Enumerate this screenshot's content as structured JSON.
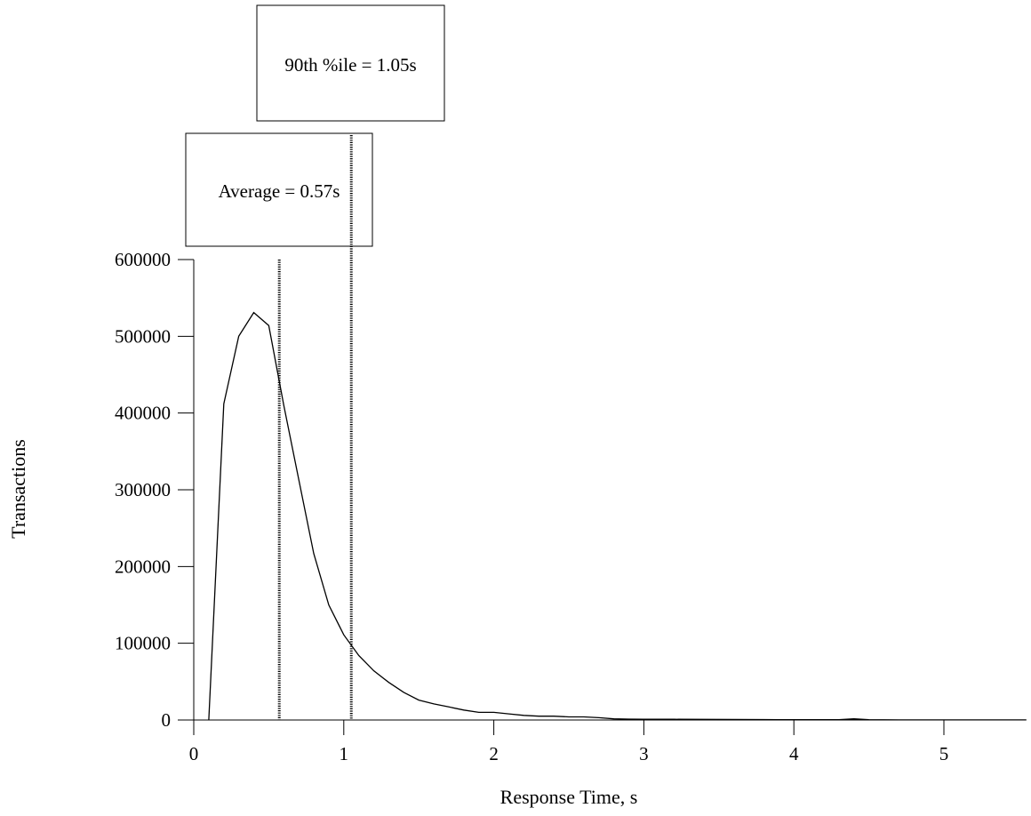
{
  "chart_data": {
    "type": "line",
    "title": "",
    "xlabel": "Response Time, s",
    "ylabel": "Transactions",
    "xlim": [
      0,
      5.55
    ],
    "ylim": [
      0,
      600000
    ],
    "x_ticks": [
      0,
      1,
      2,
      3,
      4,
      5
    ],
    "y_ticks": [
      0,
      100000,
      200000,
      300000,
      400000,
      500000,
      600000
    ],
    "x_tick_labels": [
      "0",
      "1",
      "2",
      "3",
      "4",
      "5"
    ],
    "y_tick_labels": [
      "0",
      "100000",
      "200000",
      "300000",
      "400000",
      "500000",
      "600000"
    ],
    "grid": false,
    "series": [
      {
        "x": [
          0.1,
          0.2,
          0.3,
          0.4,
          0.5,
          0.6,
          0.7,
          0.8,
          0.9,
          1.0,
          1.1,
          1.2,
          1.3,
          1.4,
          1.5,
          1.6,
          1.7,
          1.8,
          1.9,
          2.0,
          2.1,
          2.2,
          2.3,
          2.4,
          2.5,
          2.6,
          2.7,
          2.8,
          2.9,
          3.0,
          3.2,
          3.4,
          3.6,
          3.8,
          3.9,
          4.0,
          4.2,
          4.3,
          4.4,
          4.5,
          4.7,
          5.0,
          5.3,
          5.55
        ],
        "y": [
          0,
          412000,
          500000,
          531000,
          514000,
          410000,
          313000,
          217000,
          150000,
          111000,
          84000,
          64000,
          49000,
          36000,
          26000,
          21000,
          17000,
          13000,
          10000,
          10000,
          8000,
          6000,
          5000,
          5000,
          4000,
          4000,
          3000,
          1500,
          1200,
          1000,
          900,
          800,
          700,
          600,
          500,
          300,
          300,
          300,
          1500,
          300,
          100,
          100,
          100,
          100
        ]
      }
    ],
    "markers": [
      {
        "label": "Average = 0.57s",
        "x": 0.57
      },
      {
        "label": "90th %ile = 1.05s",
        "x": 1.05
      }
    ]
  }
}
